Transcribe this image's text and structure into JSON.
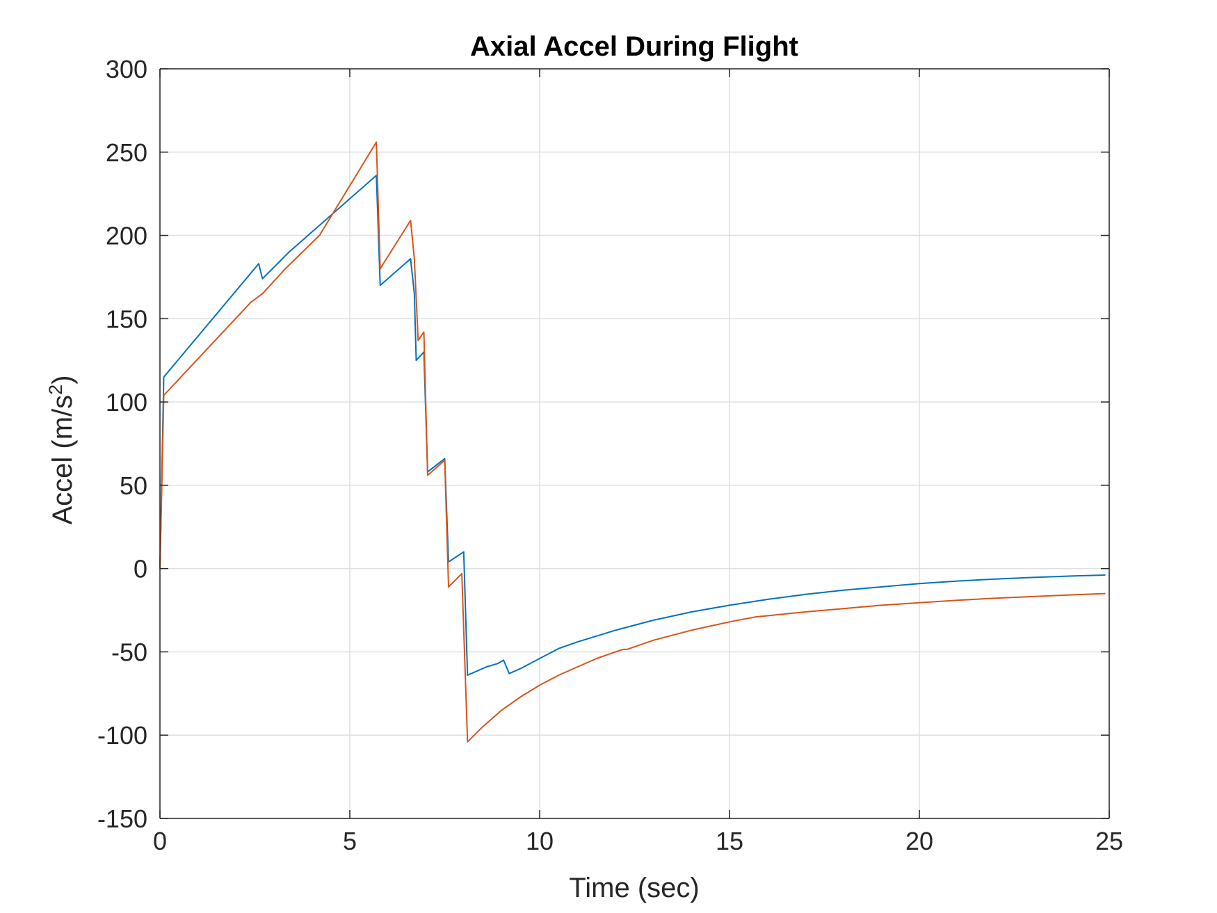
{
  "chart_data": {
    "type": "line",
    "title": "Axial Accel During Flight",
    "xlabel": "Time (sec)",
    "ylabel_main": "Accel (m/s",
    "ylabel_sup": "2",
    "ylabel_close": ")",
    "xlim": [
      0,
      25
    ],
    "ylim": [
      -150,
      300
    ],
    "xticks": [
      0,
      5,
      10,
      15,
      20,
      25
    ],
    "yticks": [
      -150,
      -100,
      -50,
      0,
      50,
      100,
      150,
      200,
      250,
      300
    ],
    "xtick_labels": [
      "0",
      "5",
      "10",
      "15",
      "20",
      "25"
    ],
    "ytick_labels": [
      "-150",
      "-100",
      "-50",
      "0",
      "50",
      "100",
      "150",
      "200",
      "250",
      "300"
    ],
    "grid": true,
    "series": [
      {
        "color": "#0072BD",
        "points": [
          [
            0,
            0
          ],
          [
            0.1,
            115
          ],
          [
            2.6,
            183
          ],
          [
            2.7,
            174
          ],
          [
            3.4,
            190
          ],
          [
            5.7,
            236
          ],
          [
            5.8,
            170
          ],
          [
            6.6,
            186
          ],
          [
            6.7,
            165
          ],
          [
            6.75,
            125
          ],
          [
            6.95,
            130
          ],
          [
            7.05,
            58
          ],
          [
            7.5,
            66
          ],
          [
            7.6,
            4
          ],
          [
            8.0,
            10
          ],
          [
            8.1,
            -64
          ],
          [
            8.3,
            -62
          ],
          [
            8.6,
            -59
          ],
          [
            8.9,
            -57
          ],
          [
            9.05,
            -55
          ],
          [
            9.2,
            -63
          ],
          [
            9.5,
            -60
          ],
          [
            10.0,
            -54
          ],
          [
            10.5,
            -48
          ],
          [
            11.0,
            -44
          ],
          [
            12.0,
            -37
          ],
          [
            13.0,
            -31
          ],
          [
            14.0,
            -26
          ],
          [
            15.0,
            -22
          ],
          [
            16.0,
            -18.5
          ],
          [
            17.0,
            -15.5
          ],
          [
            18.0,
            -13
          ],
          [
            19.0,
            -11
          ],
          [
            20.0,
            -9
          ],
          [
            21.0,
            -7.5
          ],
          [
            22.0,
            -6.3
          ],
          [
            23.0,
            -5.3
          ],
          [
            24.0,
            -4.5
          ],
          [
            24.9,
            -3.9
          ]
        ]
      },
      {
        "color": "#D95319",
        "points": [
          [
            0,
            0
          ],
          [
            0.05,
            50
          ],
          [
            0.1,
            104
          ],
          [
            2.4,
            160
          ],
          [
            2.7,
            165
          ],
          [
            3.3,
            180
          ],
          [
            4.2,
            200
          ],
          [
            5.7,
            256
          ],
          [
            5.8,
            180
          ],
          [
            6.6,
            209
          ],
          [
            6.7,
            186
          ],
          [
            6.8,
            137
          ],
          [
            6.95,
            142
          ],
          [
            7.05,
            56
          ],
          [
            7.5,
            65
          ],
          [
            7.6,
            -11
          ],
          [
            7.95,
            -3
          ],
          [
            8.1,
            -104
          ],
          [
            8.5,
            -95
          ],
          [
            9.0,
            -85
          ],
          [
            9.5,
            -77
          ],
          [
            10.0,
            -70
          ],
          [
            10.5,
            -64
          ],
          [
            11.0,
            -59
          ],
          [
            11.5,
            -54
          ],
          [
            12.0,
            -50
          ],
          [
            12.2,
            -48.5
          ],
          [
            12.3,
            -48.5
          ],
          [
            13.0,
            -43
          ],
          [
            14.0,
            -37
          ],
          [
            15.0,
            -32
          ],
          [
            15.7,
            -29
          ],
          [
            16.0,
            -28.3
          ],
          [
            17.0,
            -26
          ],
          [
            18.0,
            -24
          ],
          [
            19.0,
            -22
          ],
          [
            20.0,
            -20.5
          ],
          [
            21.0,
            -19
          ],
          [
            22.0,
            -17.8
          ],
          [
            23.0,
            -16.8
          ],
          [
            24.0,
            -15.8
          ],
          [
            24.9,
            -15
          ]
        ]
      }
    ]
  }
}
